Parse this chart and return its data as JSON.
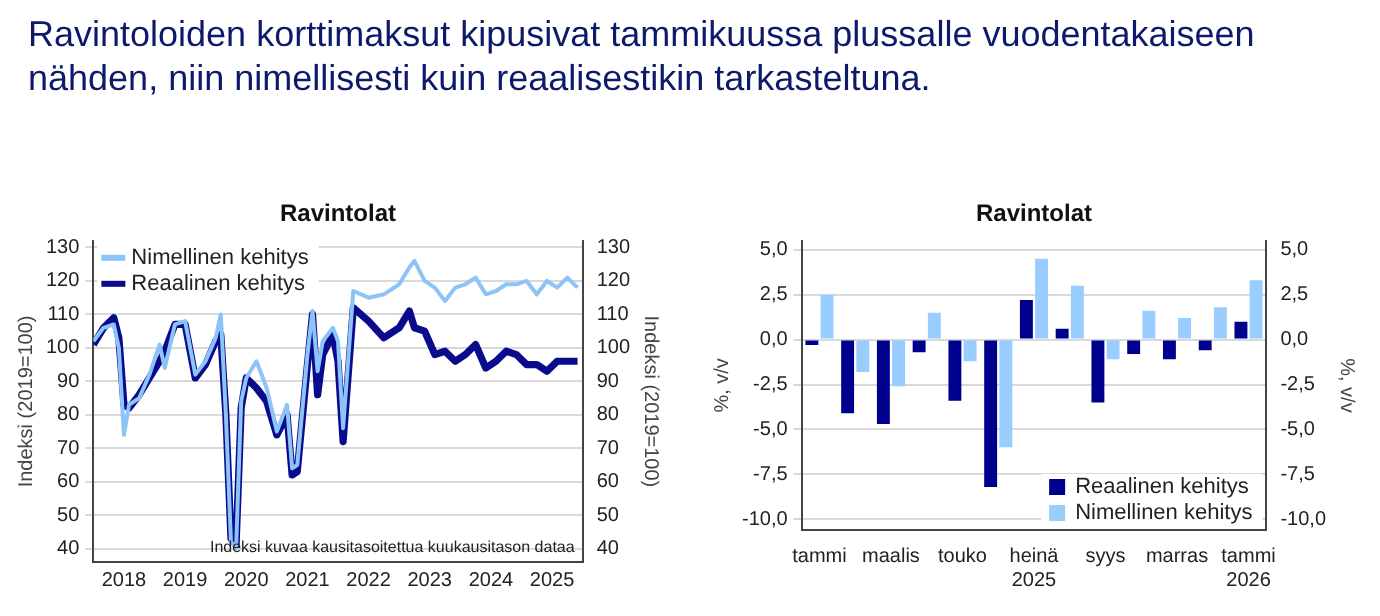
{
  "chart_data": [
    {
      "type": "line",
      "title": "Ravintolat",
      "ylabel": "Indeksi (2019=100)",
      "y2label": "Indeksi (2019=100)",
      "annotations": [
        "Ravintoloiden korttimaksut kipusivat tammikuussa plussalle vuodentakaiseen nähden, niin nimellisesti kuin reaalisestikin tarkasteltuna.",
        "Indeksi kuvaa kausitasoitettua kuukausitason dataa"
      ],
      "x": [
        "2018-01",
        "2018-03",
        "2018-05",
        "2018-06",
        "2018-07",
        "2018-08",
        "2018-10",
        "2018-12",
        "2019-02",
        "2019-03",
        "2019-05",
        "2019-07",
        "2019-09",
        "2019-11",
        "2020-01",
        "2020-02",
        "2020-03",
        "2020-04",
        "2020-05",
        "2020-06",
        "2020-07",
        "2020-09",
        "2020-11",
        "2021-01",
        "2021-03",
        "2021-04",
        "2021-05",
        "2021-07",
        "2021-08",
        "2021-09",
        "2021-10",
        "2021-12",
        "2022-01",
        "2022-02",
        "2022-04",
        "2022-07",
        "2022-10",
        "2023-01",
        "2023-03",
        "2023-04",
        "2023-06",
        "2023-08",
        "2023-10",
        "2023-12",
        "2024-02",
        "2024-04",
        "2024-06",
        "2024-08",
        "2024-10",
        "2024-12",
        "2025-02",
        "2025-04",
        "2025-06",
        "2025-08",
        "2025-10",
        "2025-12"
      ],
      "series": [
        {
          "name": "Nimellinen kehitys",
          "color": "#8cc4f7",
          "values": [
            102,
            106,
            107,
            100,
            74,
            83,
            85,
            92,
            101,
            94,
            107,
            108,
            92,
            96,
            103,
            110,
            80,
            42,
            40,
            84,
            91,
            96,
            88,
            75,
            83,
            64,
            65,
            98,
            111,
            93,
            102,
            106,
            102,
            76,
            117,
            115,
            116,
            119,
            124,
            126,
            120,
            118,
            114,
            118,
            119,
            121,
            116,
            117,
            119,
            119,
            120,
            116,
            120,
            118,
            121,
            118
          ]
        },
        {
          "name": "Reaalinen kehitys",
          "color": "#0a0a8c",
          "values": [
            101,
            106,
            109,
            103,
            83,
            82,
            86,
            91,
            96,
            99,
            107,
            107,
            91,
            95,
            102,
            104,
            80,
            43,
            41,
            82,
            91,
            88,
            84,
            74,
            80,
            62,
            63,
            95,
            110,
            86,
            98,
            104,
            96,
            72,
            112,
            108,
            103,
            106,
            111,
            106,
            105,
            98,
            99,
            96,
            98,
            101,
            94,
            96,
            99,
            98,
            95,
            95,
            93,
            96,
            96,
            96
          ]
        }
      ],
      "xlim": [
        "2018-01",
        "2026-01"
      ],
      "xticks": [
        {
          "value": "2018-07",
          "label": "2018"
        },
        {
          "value": "2019-07",
          "label": "2019"
        },
        {
          "value": "2020-07",
          "label": "2020"
        },
        {
          "value": "2021-07",
          "label": "2021"
        },
        {
          "value": "2022-07",
          "label": "2022"
        },
        {
          "value": "2023-07",
          "label": "2023"
        },
        {
          "value": "2024-07",
          "label": "2024"
        },
        {
          "value": "2025-07",
          "label": "2025"
        }
      ],
      "ylim": [
        36,
        132
      ],
      "yticks": [
        40,
        50,
        60,
        70,
        80,
        90,
        100,
        110,
        120,
        130
      ],
      "y2lim": [
        36,
        132
      ],
      "y2ticks": [
        40,
        50,
        60,
        70,
        80,
        90,
        100,
        110,
        120,
        130
      ],
      "grid": "y",
      "legend": "top left",
      "marker": "none",
      "line_style": "solid"
    },
    {
      "type": "bar",
      "title": "Ravintolat",
      "ylabel": "%, v/v",
      "y2label": "%, v/v",
      "categories": [
        "tammi",
        null,
        "maalis",
        null,
        "touko",
        null,
        "heinä\n2025",
        null,
        "syys",
        null,
        "marras",
        null,
        "tammi\n2026"
      ],
      "series": [
        {
          "name": "Reaalinen kehitys",
          "color": "#00008f",
          "values": [
            -0.3,
            -4.1,
            -4.7,
            -0.7,
            -3.4,
            -8.2,
            2.2,
            0.6,
            -3.5,
            -0.8,
            -1.1,
            -0.6,
            1.0
          ]
        },
        {
          "name": "Nimellinen kehitys",
          "color": "#99ccff",
          "values": [
            2.5,
            -1.8,
            -2.6,
            1.5,
            -1.2,
            -6.0,
            4.5,
            3.0,
            -1.1,
            1.6,
            1.2,
            1.8,
            3.3
          ]
        }
      ],
      "ylim": [
        -10.6,
        5.5
      ],
      "yticks": [
        {
          "value": -10,
          "label": "-10,0"
        },
        {
          "value": -7.5,
          "label": "-7,5"
        },
        {
          "value": -5,
          "label": "-5,0"
        },
        {
          "value": -2.5,
          "label": "-2,5"
        },
        {
          "value": 0,
          "label": "0,0"
        },
        {
          "value": 2.5,
          "label": "2,5"
        },
        {
          "value": 5,
          "label": "5,0"
        }
      ],
      "y2lim": [
        -10.6,
        5.5
      ],
      "y2ticks": [
        {
          "value": -10,
          "label": "-10,0"
        },
        {
          "value": -7.5,
          "label": "-7,5"
        },
        {
          "value": -5,
          "label": "-5,0"
        },
        {
          "value": -2.5,
          "label": "-2,5"
        },
        {
          "value": 0,
          "label": "0,0"
        },
        {
          "value": 2.5,
          "label": "2,5"
        },
        {
          "value": 5,
          "label": "5,0"
        }
      ],
      "grid": "y",
      "legend": "bottom right"
    }
  ]
}
